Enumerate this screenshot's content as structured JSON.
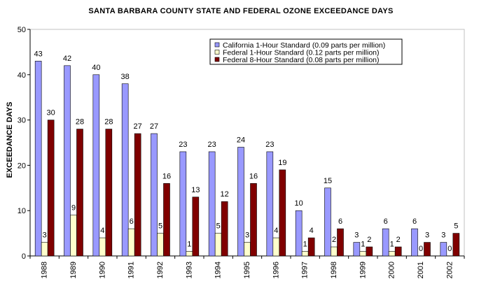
{
  "chart_data": {
    "type": "bar",
    "title": "SANTA BARBARA COUNTY STATE AND FEDERAL OZONE EXCEEDANCE DAYS",
    "xlabel": "",
    "ylabel": "EXCEEDANCE DAYS",
    "ylim": [
      0,
      50
    ],
    "yticks": [
      "0",
      "10",
      "20",
      "30",
      "40",
      "50"
    ],
    "categories": [
      "1988",
      "1989",
      "1990",
      "1991",
      "1992",
      "1993",
      "1994",
      "1995",
      "1996",
      "1997",
      "1998",
      "1999",
      "2000",
      "2001",
      "2002"
    ],
    "series": [
      {
        "name": "California 1-Hour Standard (0.09 parts per million)",
        "color": "#9999ff",
        "values": [
          43,
          42,
          40,
          38,
          27,
          23,
          23,
          24,
          23,
          10,
          15,
          3,
          6,
          6,
          3
        ]
      },
      {
        "name": "Federal 1-Hour Standard (0.12 parts per million)",
        "color": "#ffffcc",
        "values": [
          3,
          9,
          4,
          6,
          5,
          1,
          5,
          3,
          4,
          1,
          2,
          1,
          1,
          0,
          0
        ]
      },
      {
        "name": "Federal 8-Hour Standard (0.08 parts per million)",
        "color": "#800000",
        "values": [
          30,
          28,
          28,
          27,
          16,
          13,
          12,
          16,
          19,
          4,
          6,
          2,
          2,
          3,
          5
        ]
      }
    ],
    "legend_position": "top-right",
    "grid": false
  }
}
